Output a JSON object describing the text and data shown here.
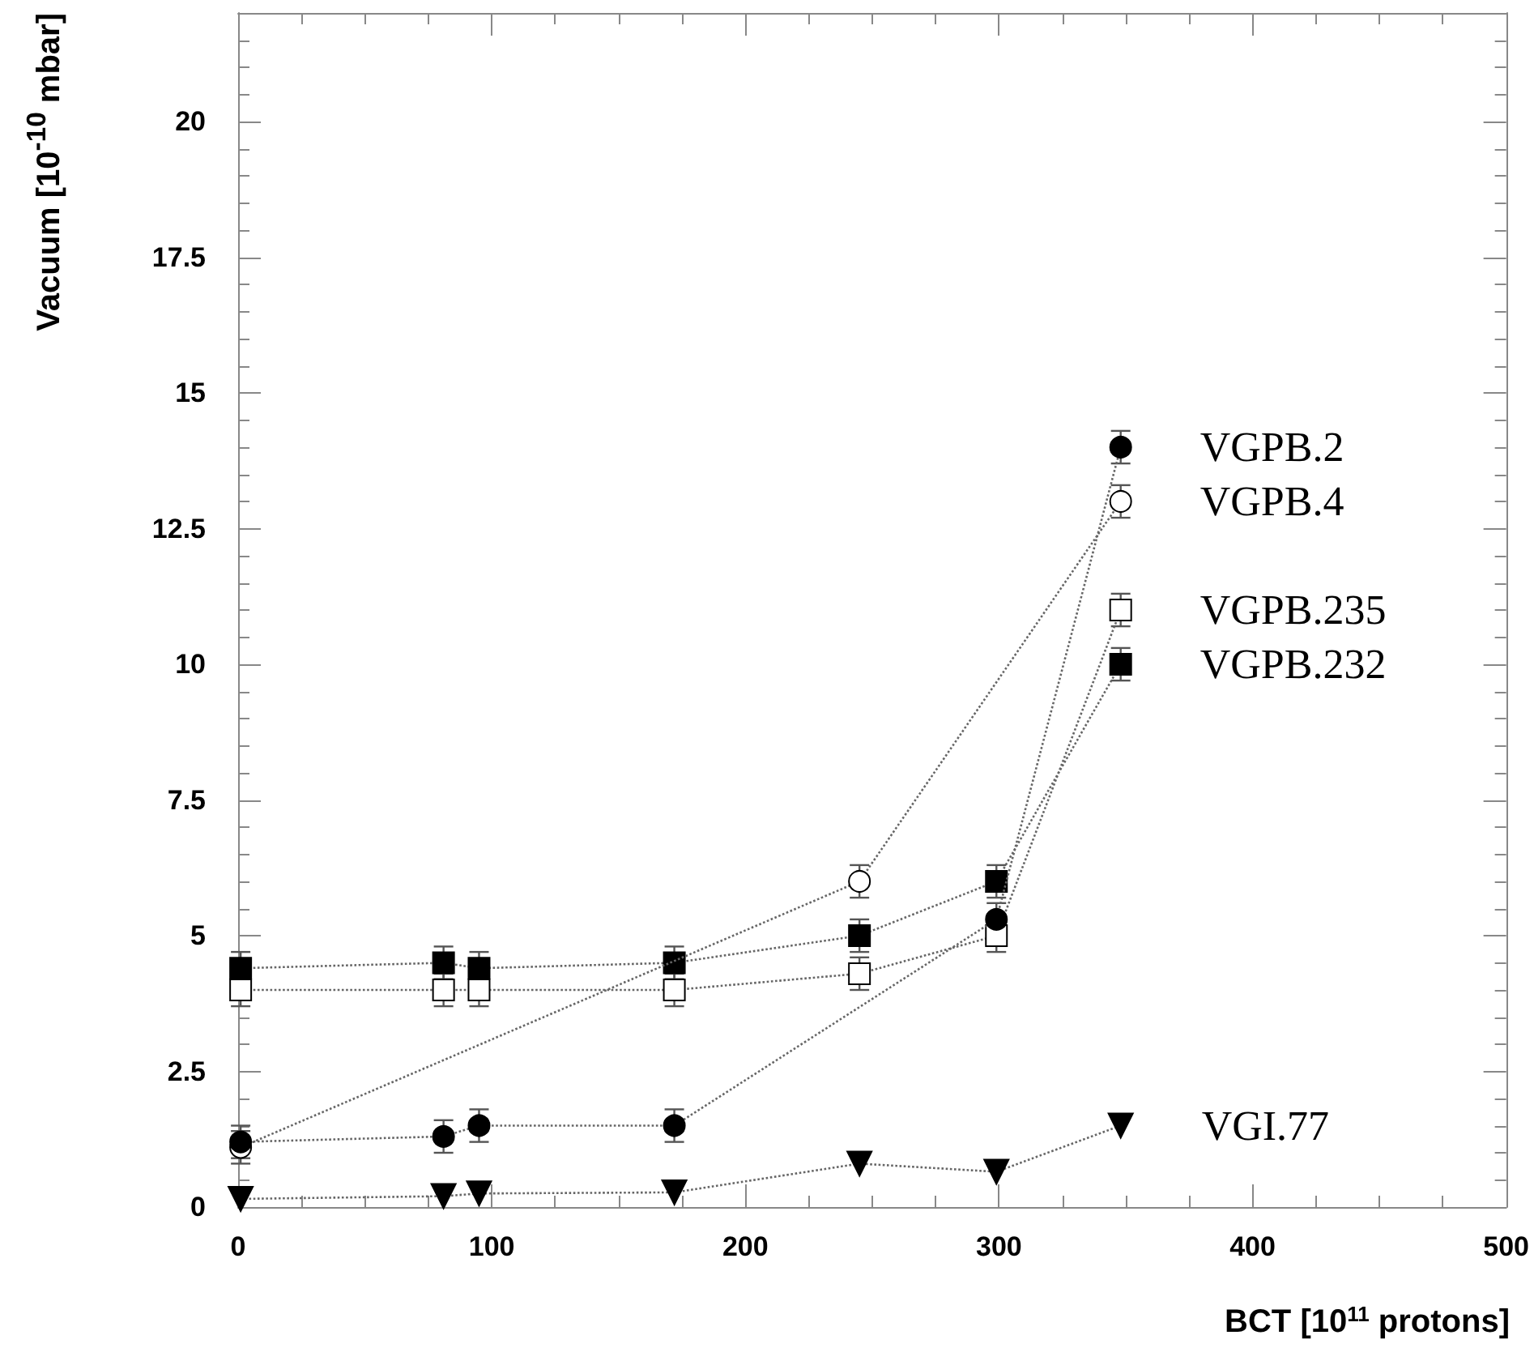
{
  "chart_data": {
    "type": "line",
    "xlabel": "BCT [10$^{11}$ protons]",
    "ylabel": "Vacuum [10$^{-10}$ mbar]",
    "xlim": [
      0,
      500
    ],
    "xticks": [
      0,
      100,
      200,
      300,
      400,
      500
    ],
    "ylim": [
      0,
      22
    ],
    "yticks": [
      0,
      2.5,
      5,
      7.5,
      10,
      12.5,
      15,
      17.5,
      20
    ],
    "grid": false,
    "legend": false,
    "line_style": "dotted",
    "series": [
      {
        "name": "VGPB.2",
        "color": "#000000",
        "marker": "circle",
        "x": [
          1,
          81,
          95,
          172,
          299,
          348
        ],
        "values": [
          1.2,
          1.3,
          1.5,
          1.5,
          5.3,
          14.0
        ],
        "errors": [
          0.3,
          0.3,
          0.3,
          0.3,
          0.3,
          0.3
        ]
      },
      {
        "name": "VGPB.4",
        "color": "#ffffff",
        "marker": "circle",
        "x": [
          1,
          245,
          348
        ],
        "values": [
          1.1,
          6.0,
          13.0
        ],
        "errors": [
          0.3,
          0.3,
          0.3
        ]
      },
      {
        "name": "VGPB.235",
        "color": "#ffffff",
        "marker": "square",
        "x": [
          1,
          81,
          95,
          172,
          245,
          299,
          348
        ],
        "values": [
          4.0,
          4.0,
          4.0,
          4.0,
          4.3,
          5.0,
          11.0
        ],
        "errors": [
          0.3,
          0.3,
          0.3,
          0.3,
          0.3,
          0.3,
          0.3
        ]
      },
      {
        "name": "VGPB.232",
        "color": "#000000",
        "marker": "square",
        "x": [
          1,
          81,
          95,
          172,
          245,
          299,
          348
        ],
        "values": [
          4.4,
          4.5,
          4.4,
          4.5,
          5.0,
          6.0,
          10.0
        ],
        "errors": [
          0.3,
          0.3,
          0.3,
          0.3,
          0.3,
          0.3,
          0.3
        ]
      },
      {
        "name": "VGI.77",
        "color": "#000000",
        "marker": "triangle",
        "x": [
          1,
          81,
          95,
          172,
          245,
          299,
          348
        ],
        "values": [
          0.15,
          0.2,
          0.25,
          0.27,
          0.8,
          0.65,
          1.5
        ]
      }
    ]
  }
}
